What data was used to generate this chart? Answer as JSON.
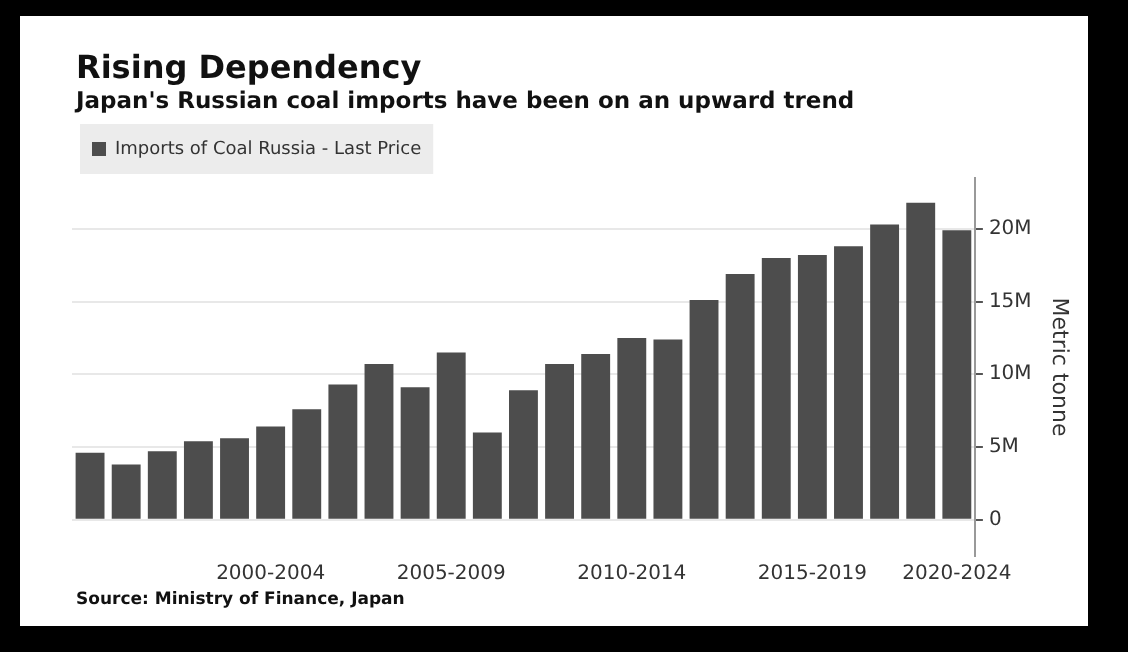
{
  "chart_data": {
    "type": "bar",
    "title": "Rising Dependency",
    "subtitle": "Japan's Russian coal imports have been on an upward trend",
    "ylabel": "Metric tonne",
    "annotations": [
      "Source: Ministry of Finance, Japan"
    ],
    "categories": [
      null,
      null,
      null,
      null,
      null,
      "2000-2004",
      null,
      null,
      null,
      null,
      "2005-2009",
      null,
      null,
      null,
      null,
      "2010-2014",
      null,
      null,
      null,
      null,
      "2015-2019",
      null,
      null,
      null,
      "2020-2024"
    ],
    "series": [
      {
        "name": "Imports of Coal Russia - Last Price",
        "color": "#4d4d4d",
        "values": [
          4600000,
          3800000,
          4700000,
          5400000,
          5600000,
          6400000,
          7600000,
          9300000,
          10700000,
          9100000,
          11500000,
          6000000,
          8900000,
          10700000,
          11400000,
          12500000,
          12400000,
          15100000,
          16900000,
          18000000,
          18200000,
          18800000,
          20300000,
          21800000,
          19900000
        ]
      }
    ],
    "ylim": [
      -2500000,
      23500000
    ],
    "yticks": [
      0,
      {
        "value": 5000000,
        "label": "5M"
      },
      {
        "value": 10000000,
        "label": "10M"
      },
      {
        "value": 15000000,
        "label": "15M"
      },
      {
        "value": 20000000,
        "label": "20M"
      }
    ],
    "grid": "y",
    "legend": "top left"
  }
}
